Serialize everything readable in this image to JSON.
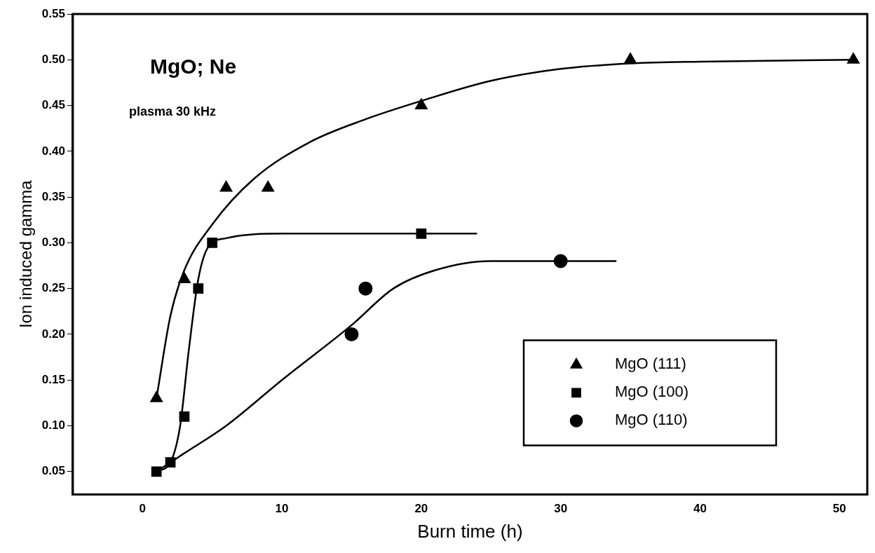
{
  "chart_data": {
    "type": "scatter",
    "xlabel": "Burn time (h)",
    "ylabel": "Ion induced gamma",
    "annotations": [
      "MgO; Ne",
      "plasma 30 kHz"
    ],
    "xlim": [
      -5,
      52
    ],
    "xticks": [
      0,
      10,
      20,
      30,
      40,
      50
    ],
    "ylim": [
      0.025,
      0.55
    ],
    "yticks": [
      {
        "value": 0.05,
        "label": "0.05"
      },
      {
        "value": 0.1,
        "label": "0.10"
      },
      {
        "value": 0.15,
        "label": "0.15"
      },
      {
        "value": 0.2,
        "label": "0.20"
      },
      {
        "value": 0.25,
        "label": "0.25"
      },
      {
        "value": 0.3,
        "label": "0.30"
      },
      {
        "value": 0.35,
        "label": "0.35"
      },
      {
        "value": 0.4,
        "label": "0.40"
      },
      {
        "value": 0.45,
        "label": "0.45"
      },
      {
        "value": 0.5,
        "label": "0.50"
      },
      {
        "value": 0.55,
        "label": "0.55"
      }
    ],
    "grid": false,
    "legend": "bottom right",
    "series": [
      {
        "name": "MgO (111)",
        "color": "#000000",
        "marker": "triangle",
        "x": [
          1,
          3,
          6,
          9,
          20,
          35,
          51
        ],
        "values": [
          0.13,
          0.26,
          0.36,
          0.36,
          0.45,
          0.5,
          0.5
        ]
      },
      {
        "name": "MgO (100)",
        "color": "#000000",
        "marker": "square",
        "x": [
          1,
          2,
          3,
          4,
          5,
          20
        ],
        "values": [
          0.05,
          0.06,
          0.11,
          0.25,
          0.3,
          0.31
        ]
      },
      {
        "name": "MgO (110)",
        "color": "#000000",
        "marker": "circle",
        "x": [
          15,
          16,
          30
        ],
        "values": [
          0.2,
          0.25,
          0.28
        ]
      },
      {
        "type": "line",
        "color": "#000000",
        "marker": "none",
        "x": [
          1,
          2,
          3,
          5,
          8,
          12,
          16,
          20,
          25,
          30,
          35,
          40,
          51
        ],
        "values": [
          0.13,
          0.22,
          0.27,
          0.32,
          0.37,
          0.41,
          0.435,
          0.455,
          0.477,
          0.49,
          0.496,
          0.498,
          0.5
        ]
      },
      {
        "type": "line",
        "color": "#000000",
        "marker": "none",
        "x": [
          1,
          2,
          2.7,
          3.3,
          4,
          4.7,
          6,
          10,
          24
        ],
        "values": [
          0.05,
          0.06,
          0.1,
          0.18,
          0.26,
          0.295,
          0.305,
          0.31,
          0.31
        ]
      },
      {
        "type": "line",
        "color": "#000000",
        "marker": "none",
        "x": [
          1,
          3,
          6,
          10,
          15,
          18,
          21,
          25,
          34
        ],
        "values": [
          0.05,
          0.07,
          0.1,
          0.15,
          0.21,
          0.25,
          0.27,
          0.28,
          0.28
        ]
      }
    ]
  }
}
